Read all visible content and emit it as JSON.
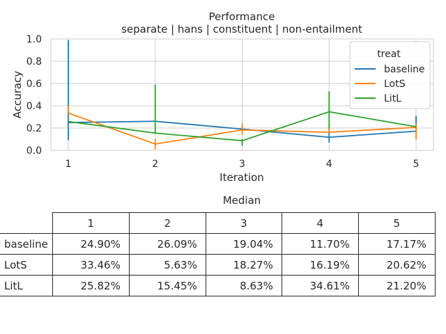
{
  "chart_data": [
    {
      "type": "line",
      "title": "Performance",
      "subtitle": "separate | hans | constituent | non-entailment",
      "xlabel": "Iteration",
      "ylabel": "Accuracy",
      "x": [
        1,
        2,
        3,
        4,
        5
      ],
      "xticks": [
        "1",
        "2",
        "3",
        "4",
        "5"
      ],
      "ylim": [
        0,
        1
      ],
      "yticks": [
        "0.0",
        "0.2",
        "0.4",
        "0.6",
        "0.8",
        "1.0"
      ],
      "grid": true,
      "legend": {
        "title": "treat",
        "position": "top-right"
      },
      "series": [
        {
          "name": "baseline",
          "color": "#1f77b4",
          "values": [
            0.249,
            0.2609,
            0.1904,
            0.117,
            0.1717
          ],
          "err_low": [
            0.09,
            0.2609,
            0.19,
            0.07,
            0.1717
          ],
          "err_high": [
            0.99,
            0.2609,
            0.2,
            0.2,
            0.31
          ]
        },
        {
          "name": "LotS",
          "color": "#ff7f0e",
          "values": [
            0.3346,
            0.0563,
            0.1827,
            0.1619,
            0.2062
          ],
          "err_low": [
            0.3346,
            0.01,
            0.14,
            0.1619,
            0.1
          ],
          "err_high": [
            0.4,
            0.1,
            0.24,
            0.23,
            0.24
          ]
        },
        {
          "name": "LitL",
          "color": "#2ca02c",
          "values": [
            0.2582,
            0.1545,
            0.0863,
            0.3461,
            0.212
          ],
          "err_low": [
            0.2582,
            0.1545,
            0.04,
            0.2,
            0.212
          ],
          "err_high": [
            0.26,
            0.59,
            0.1,
            0.53,
            0.22
          ]
        }
      ]
    },
    {
      "type": "table",
      "title": "Median",
      "columns": [
        "1",
        "2",
        "3",
        "4",
        "5"
      ],
      "rows": [
        {
          "label": "baseline",
          "cells": [
            "24.90%",
            "26.09%",
            "19.04%",
            "11.70%",
            "17.17%"
          ]
        },
        {
          "label": "LotS",
          "cells": [
            "33.46%",
            "5.63%",
            "18.27%",
            "16.19%",
            "20.62%"
          ]
        },
        {
          "label": "LitL",
          "cells": [
            "25.82%",
            "15.45%",
            "8.63%",
            "34.61%",
            "21.20%"
          ]
        }
      ]
    }
  ]
}
